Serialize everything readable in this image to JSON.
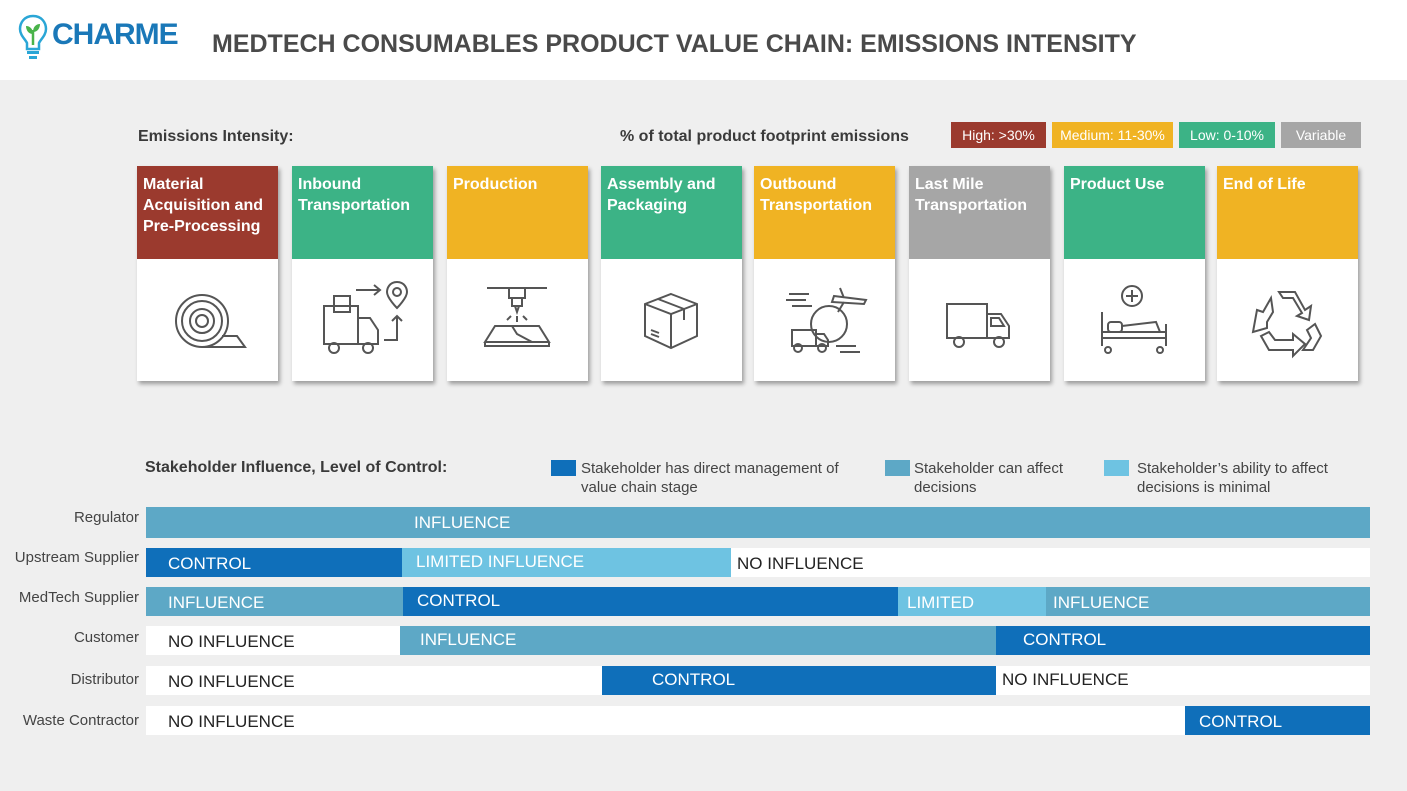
{
  "header": {
    "logo_text": "CHARME",
    "title": "MEDTECH CONSUMABLES PRODUCT VALUE CHAIN: EMISSIONS INTENSITY"
  },
  "emissions": {
    "label": "Emissions Intensity:",
    "pct_label": "% of total product footprint emissions",
    "legend": [
      {
        "label": "High: >30%",
        "color": "#9b3a2e"
      },
      {
        "label": "Medium: 11-30%",
        "color": "#f0b323"
      },
      {
        "label": "Low: 0-10%",
        "color": "#3cb386"
      },
      {
        "label": "Variable",
        "color": "#a6a6a6"
      }
    ]
  },
  "stages": [
    {
      "label": "Material Acquisition and Pre-Processing",
      "color": "#9b3a2e",
      "icon": "material-roll-icon"
    },
    {
      "label": "Inbound Transportation",
      "color": "#3cb386",
      "icon": "truck-location-icon"
    },
    {
      "label": "Production",
      "color": "#f0b323",
      "icon": "production-machine-icon"
    },
    {
      "label": "Assembly and Packaging",
      "color": "#3cb386",
      "icon": "package-box-icon"
    },
    {
      "label": "Outbound Transportation",
      "color": "#f0b323",
      "icon": "plane-globe-truck-icon"
    },
    {
      "label": "Last Mile Transportation",
      "color": "#a6a6a6",
      "icon": "delivery-truck-icon"
    },
    {
      "label": "Product Use",
      "color": "#3cb386",
      "icon": "hospital-bed-icon"
    },
    {
      "label": "End of Life",
      "color": "#f0b323",
      "icon": "recycle-icon"
    }
  ],
  "stakeholder": {
    "label": "Stakeholder Influence, Level of Control:",
    "key": [
      {
        "text": "Stakeholder has direct management of value chain stage",
        "color": "#0f6fba"
      },
      {
        "text": "Stakeholder can affect decisions",
        "color": "#5da8c6"
      },
      {
        "text": "Stakeholder’s ability to affect decisions is minimal",
        "color": "#6ec3e2"
      }
    ],
    "rows": [
      {
        "name": "Regulator",
        "segments": [
          {
            "label": "INFLUENCE",
            "level": "influence"
          }
        ]
      },
      {
        "name": "Upstream Supplier",
        "segments": [
          {
            "label": "CONTROL",
            "level": "control"
          },
          {
            "label": "LIMITED INFLUENCE",
            "level": "limited"
          },
          {
            "label": "NO INFLUENCE",
            "level": "none"
          }
        ]
      },
      {
        "name": "MedTech Supplier",
        "segments": [
          {
            "label": "INFLUENCE",
            "level": "influence"
          },
          {
            "label": "CONTROL",
            "level": "control"
          },
          {
            "label": "LIMITED",
            "level": "limited"
          },
          {
            "label": "INFLUENCE",
            "level": "influence"
          }
        ]
      },
      {
        "name": "Customer",
        "segments": [
          {
            "label": "NO INFLUENCE",
            "level": "none"
          },
          {
            "label": "INFLUENCE",
            "level": "influence"
          },
          {
            "label": "CONTROL",
            "level": "control"
          }
        ]
      },
      {
        "name": "Distributor",
        "segments": [
          {
            "label": "NO INFLUENCE",
            "level": "none"
          },
          {
            "label": "CONTROL",
            "level": "control"
          },
          {
            "label": "NO INFLUENCE",
            "level": "none"
          }
        ]
      },
      {
        "name": "Waste Contractor",
        "segments": [
          {
            "label": "NO INFLUENCE",
            "level": "none"
          },
          {
            "label": "CONTROL",
            "level": "control"
          }
        ]
      }
    ]
  }
}
